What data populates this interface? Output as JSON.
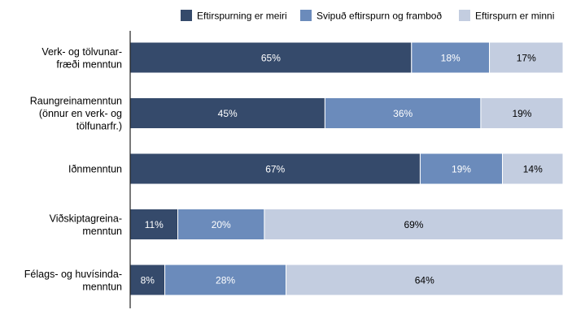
{
  "chart_data": {
    "type": "bar",
    "orientation": "horizontal",
    "stacked": true,
    "percent_stacked": true,
    "title": "",
    "xlabel": "",
    "ylabel": "",
    "xlim": [
      0,
      100
    ],
    "grid": false,
    "legend_position": "top-right",
    "categories": [
      "Verk- og tölvunar-\nfræði menntun",
      "Raungreinamenntun\n(önnur en verk- og\ntölfunarfr.)",
      "Iðnmenntun",
      "Viðskiptagreina-\nmenntun",
      "Félags- og huvísinda-\nmenntun"
    ],
    "series": [
      {
        "name": "Eftirspurning er meiri",
        "values": [
          65,
          45,
          67,
          11,
          8
        ],
        "labels": [
          "65%",
          "45%",
          "67%",
          "11%",
          "8%"
        ],
        "color": "#354a6b"
      },
      {
        "name": "Svipuð eftirspurn og framboð",
        "values": [
          18,
          36,
          19,
          20,
          28
        ],
        "labels": [
          "18%",
          "36%",
          "19%",
          "20%",
          "28%"
        ],
        "color": "#6b8bbb"
      },
      {
        "name": "Eftirspurn er minni",
        "values": [
          17,
          19,
          14,
          69,
          64
        ],
        "labels": [
          "17%",
          "19%",
          "14%",
          "69%",
          "64%"
        ],
        "color": "#c3cde0"
      }
    ]
  }
}
